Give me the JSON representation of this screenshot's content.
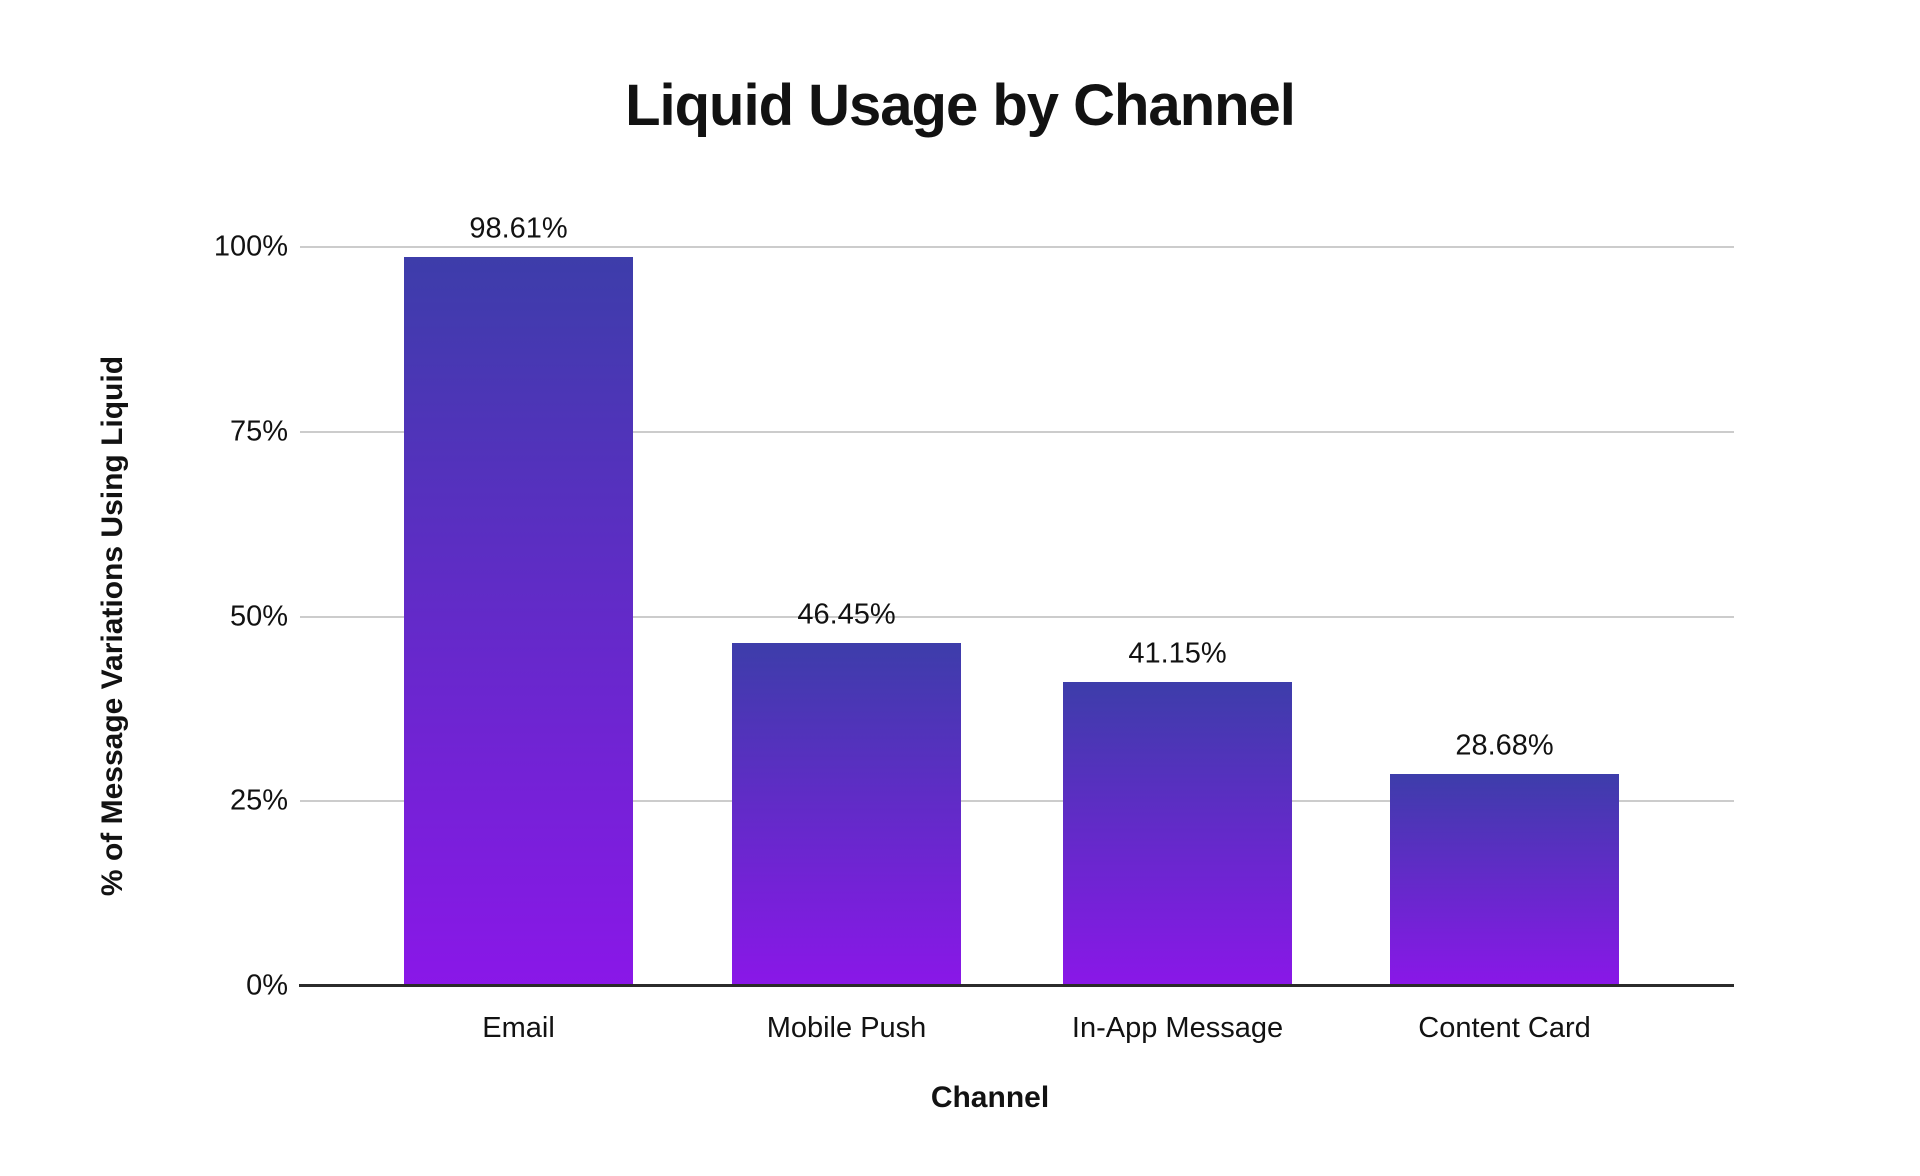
{
  "chart_data": {
    "type": "bar",
    "title": "Liquid Usage by Channel",
    "xlabel": "Channel",
    "ylabel": "% of Message Variations Using Liquid",
    "categories": [
      "Email",
      "Mobile Push",
      "In-App Message",
      "Content Card"
    ],
    "values": [
      98.61,
      46.45,
      41.15,
      28.68
    ],
    "value_labels": [
      "98.61%",
      "46.45%",
      "41.15%",
      "28.68%"
    ],
    "y_ticks": [
      {
        "label": "100%",
        "value": 100
      },
      {
        "label": "75%",
        "value": 75
      },
      {
        "label": "50%",
        "value": 50
      },
      {
        "label": "25%",
        "value": 25
      },
      {
        "label": "0%",
        "value": 0
      }
    ],
    "ylim": [
      0,
      100
    ],
    "grid": "horizontal",
    "legend": "none",
    "colors": {
      "bar_gradient_top": "#3D3DAA",
      "bar_gradient_bottom": "#8A17E8",
      "gridline": "#CCCCCC",
      "axis_line": "#2B2B2B",
      "text": "#121212",
      "background": "#FFFFFF"
    }
  }
}
